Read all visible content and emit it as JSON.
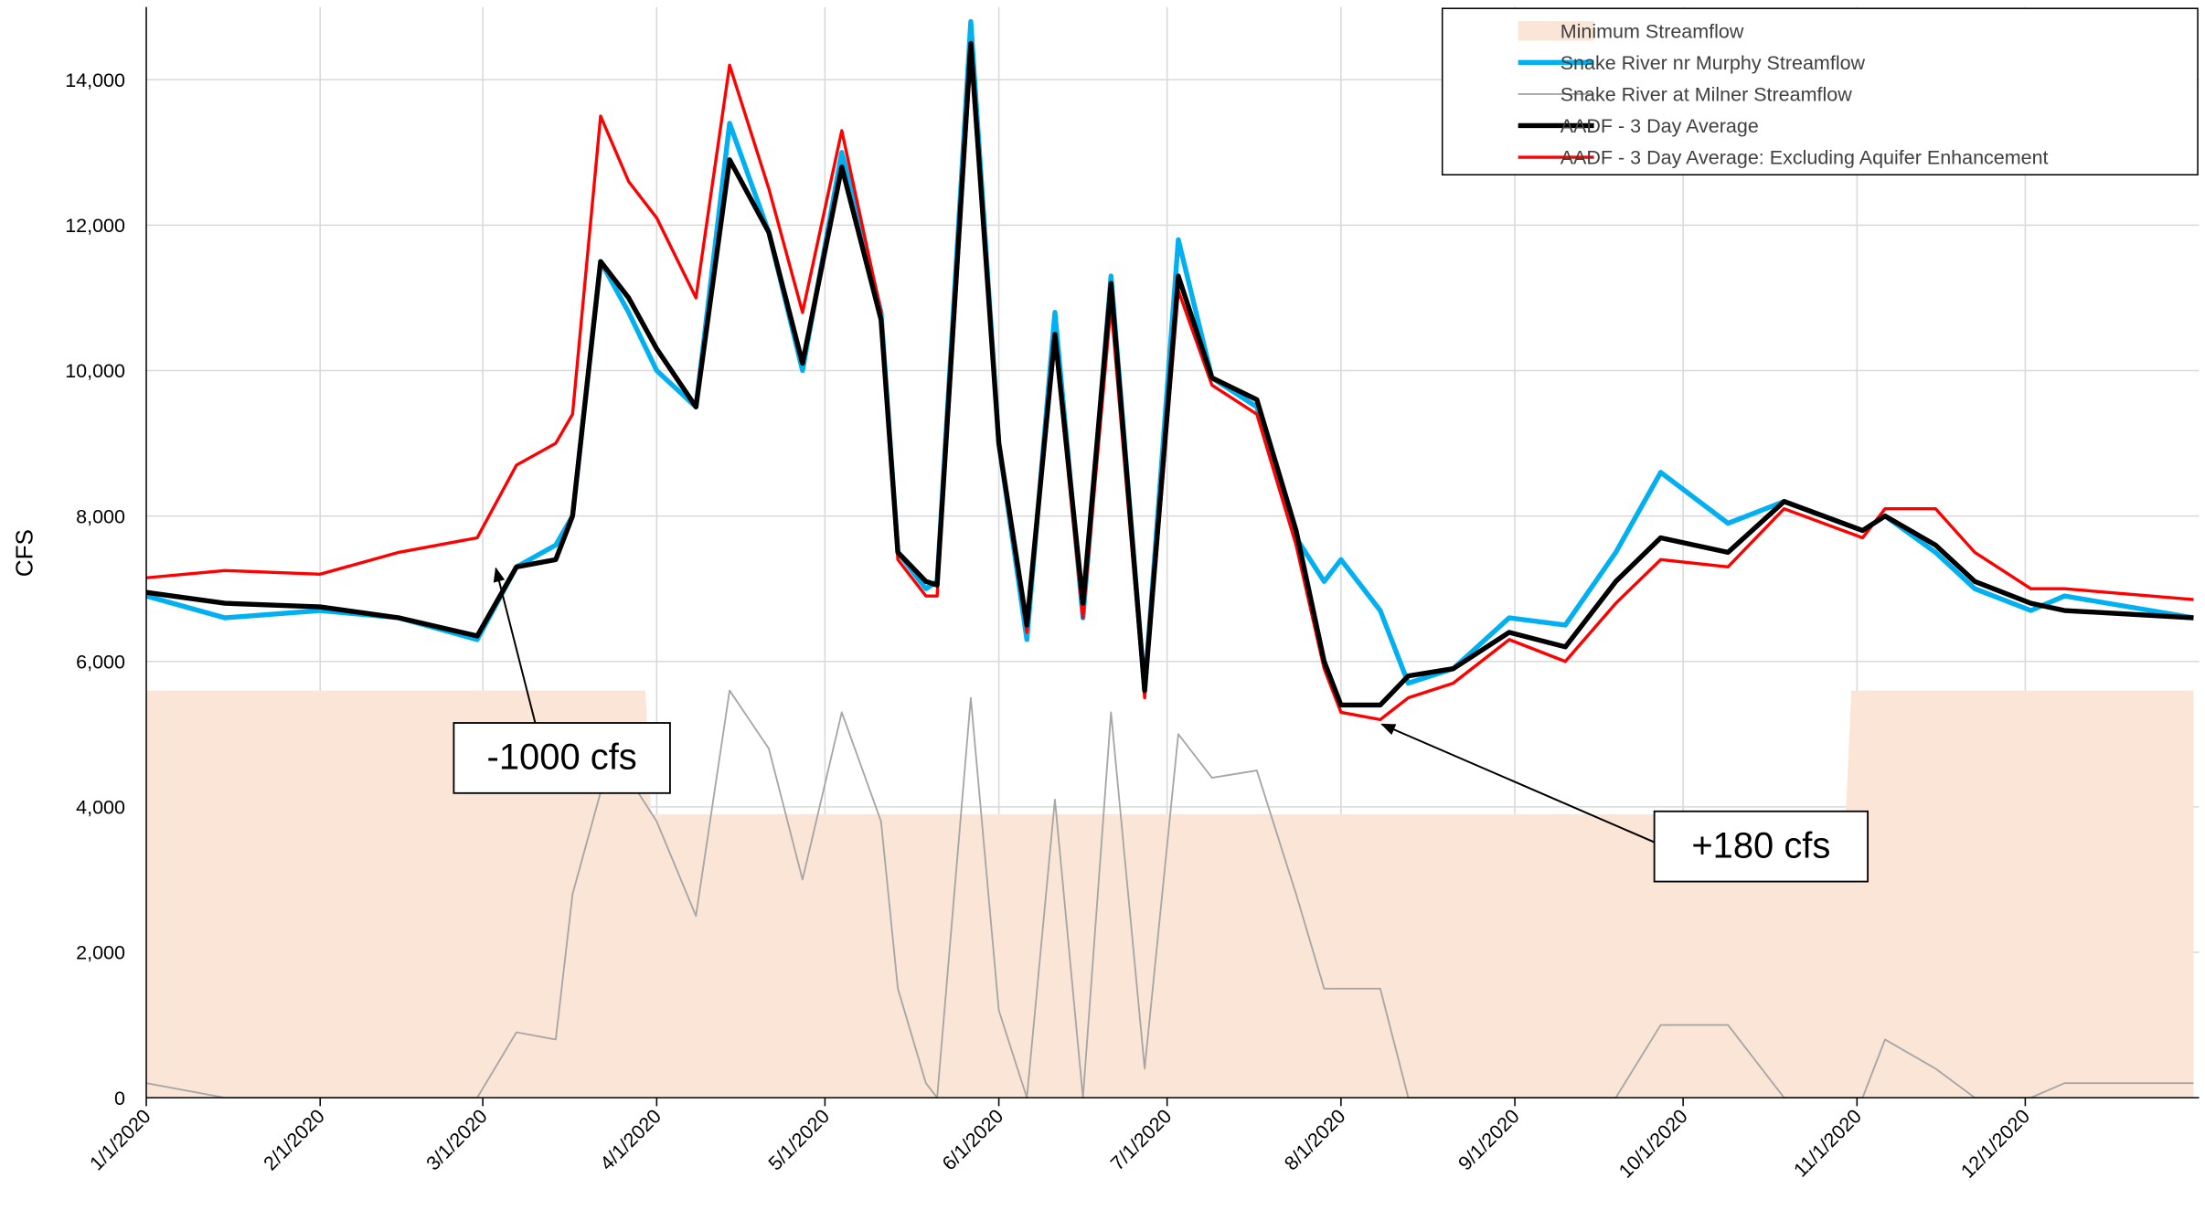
{
  "chart_data": {
    "type": "line",
    "ylabel": "CFS",
    "x": [
      "1/1/2020",
      "1/15/2020",
      "2/1/2020",
      "2/15/2020",
      "2/29/2020",
      "3/7/2020",
      "3/14/2020",
      "3/17/2020",
      "3/22/2020",
      "3/27/2020",
      "4/1/2020",
      "4/8/2020",
      "4/14/2020",
      "4/21/2020",
      "4/27/2020",
      "5/4/2020",
      "5/11/2020",
      "5/14/2020",
      "5/19/2020",
      "5/21/2020",
      "5/27/2020",
      "6/1/2020",
      "6/6/2020",
      "6/11/2020",
      "6/16/2020",
      "6/21/2020",
      "6/27/2020",
      "7/3/2020",
      "7/9/2020",
      "7/17/2020",
      "7/24/2020",
      "7/29/2020",
      "8/1/2020",
      "8/8/2020",
      "8/13/2020",
      "8/21/2020",
      "8/31/2020",
      "9/10/2020",
      "9/19/2020",
      "9/27/2020",
      "10/9/2020",
      "10/19/2020",
      "11/2/2020",
      "11/6/2020",
      "11/15/2020",
      "11/22/2020",
      "12/2/2020",
      "12/8/2020",
      "12/31/2020"
    ],
    "series": [
      {
        "name": "Minimum Streamflow",
        "style": "area",
        "color": "#fbe5d6",
        "x": [
          "1/1/2020",
          "3/30/2020",
          "3/31/2020",
          "10/30/2020",
          "10/31/2020",
          "12/31/2020"
        ],
        "values": [
          5600,
          5600,
          3900,
          3900,
          5600,
          5600
        ]
      },
      {
        "name": "Snake River nr Murphy Streamflow",
        "color": "#00b0f0",
        "values": [
          6900,
          6600,
          6700,
          6600,
          6300,
          7300,
          7600,
          8000,
          11500,
          10800,
          10000,
          9500,
          13400,
          11900,
          10000,
          13000,
          10800,
          7500,
          7000,
          7100,
          14800,
          9000,
          6300,
          10800,
          6600,
          11300,
          5600,
          11800,
          9900,
          9500,
          7700,
          7100,
          7400,
          6700,
          5700,
          5900,
          6600,
          6500,
          7500,
          8600,
          7900,
          8200,
          7800,
          8000,
          7500,
          7000,
          6700,
          6900,
          6600
        ]
      },
      {
        "name": "Snake River at Milner Streamflow",
        "color": "#a6a6a6",
        "values": [
          200,
          0,
          0,
          0,
          0,
          900,
          800,
          2800,
          4200,
          4400,
          3800,
          2500,
          5600,
          4800,
          3000,
          5300,
          3800,
          1500,
          200,
          0,
          5500,
          1200,
          0,
          4100,
          0,
          5300,
          400,
          5000,
          4400,
          4500,
          2800,
          1500,
          1500,
          1500,
          0,
          0,
          0,
          0,
          0,
          1000,
          1000,
          0,
          0,
          800,
          400,
          0,
          0,
          200,
          200
        ]
      },
      {
        "name": "AADF - 3 Day Average",
        "color": "#000000",
        "values": [
          6950,
          6800,
          6750,
          6600,
          6350,
          7300,
          7400,
          8000,
          11500,
          11000,
          10300,
          9500,
          12900,
          11900,
          10100,
          12800,
          10700,
          7500,
          7100,
          7050,
          14500,
          9000,
          6500,
          10500,
          6800,
          11200,
          5600,
          11300,
          9900,
          9600,
          7800,
          6000,
          5400,
          5400,
          5800,
          5900,
          6400,
          6200,
          7100,
          7700,
          7500,
          8200,
          7800,
          8000,
          7600,
          7100,
          6800,
          6700,
          6600
        ]
      },
      {
        "name": "AADF - 3 Day Average: Excluding Aquifer Enhancement",
        "color": "#ff0000",
        "values": [
          7150,
          7250,
          7200,
          7500,
          7700,
          8700,
          9000,
          9400,
          13500,
          12600,
          12100,
          11000,
          14200,
          12500,
          10800,
          13300,
          10800,
          7400,
          6900,
          6900,
          14300,
          9000,
          6400,
          10400,
          6600,
          10900,
          5500,
          11100,
          9800,
          9400,
          7600,
          5900,
          5300,
          5200,
          5500,
          5700,
          6300,
          6000,
          6800,
          7400,
          7300,
          8100,
          7700,
          8100,
          8100,
          7500,
          7000,
          7000,
          6850
        ]
      }
    ],
    "xlim": [
      "1/1/2020",
      "12/31/2020"
    ],
    "xticks": [
      "1/1/2020",
      "2/1/2020",
      "3/1/2020",
      "4/1/2020",
      "5/1/2020",
      "6/1/2020",
      "7/1/2020",
      "8/1/2020",
      "9/1/2020",
      "10/1/2020",
      "11/1/2020",
      "12/1/2020"
    ],
    "ylim": [
      0,
      15000
    ],
    "yticks": [
      0,
      {
        "value": 2000,
        "label": "2,000"
      },
      {
        "value": 4000,
        "label": "4,000"
      },
      {
        "value": 6000,
        "label": "6,000"
      },
      {
        "value": 8000,
        "label": "8,000"
      },
      {
        "value": 10000,
        "label": "10,000"
      },
      {
        "value": 12000,
        "label": "12,000"
      },
      {
        "value": 14000,
        "label": "14,000"
      }
    ],
    "grid": true,
    "legend": "upper right",
    "annotations": [
      "-1000 cfs",
      "+180 cfs"
    ]
  }
}
